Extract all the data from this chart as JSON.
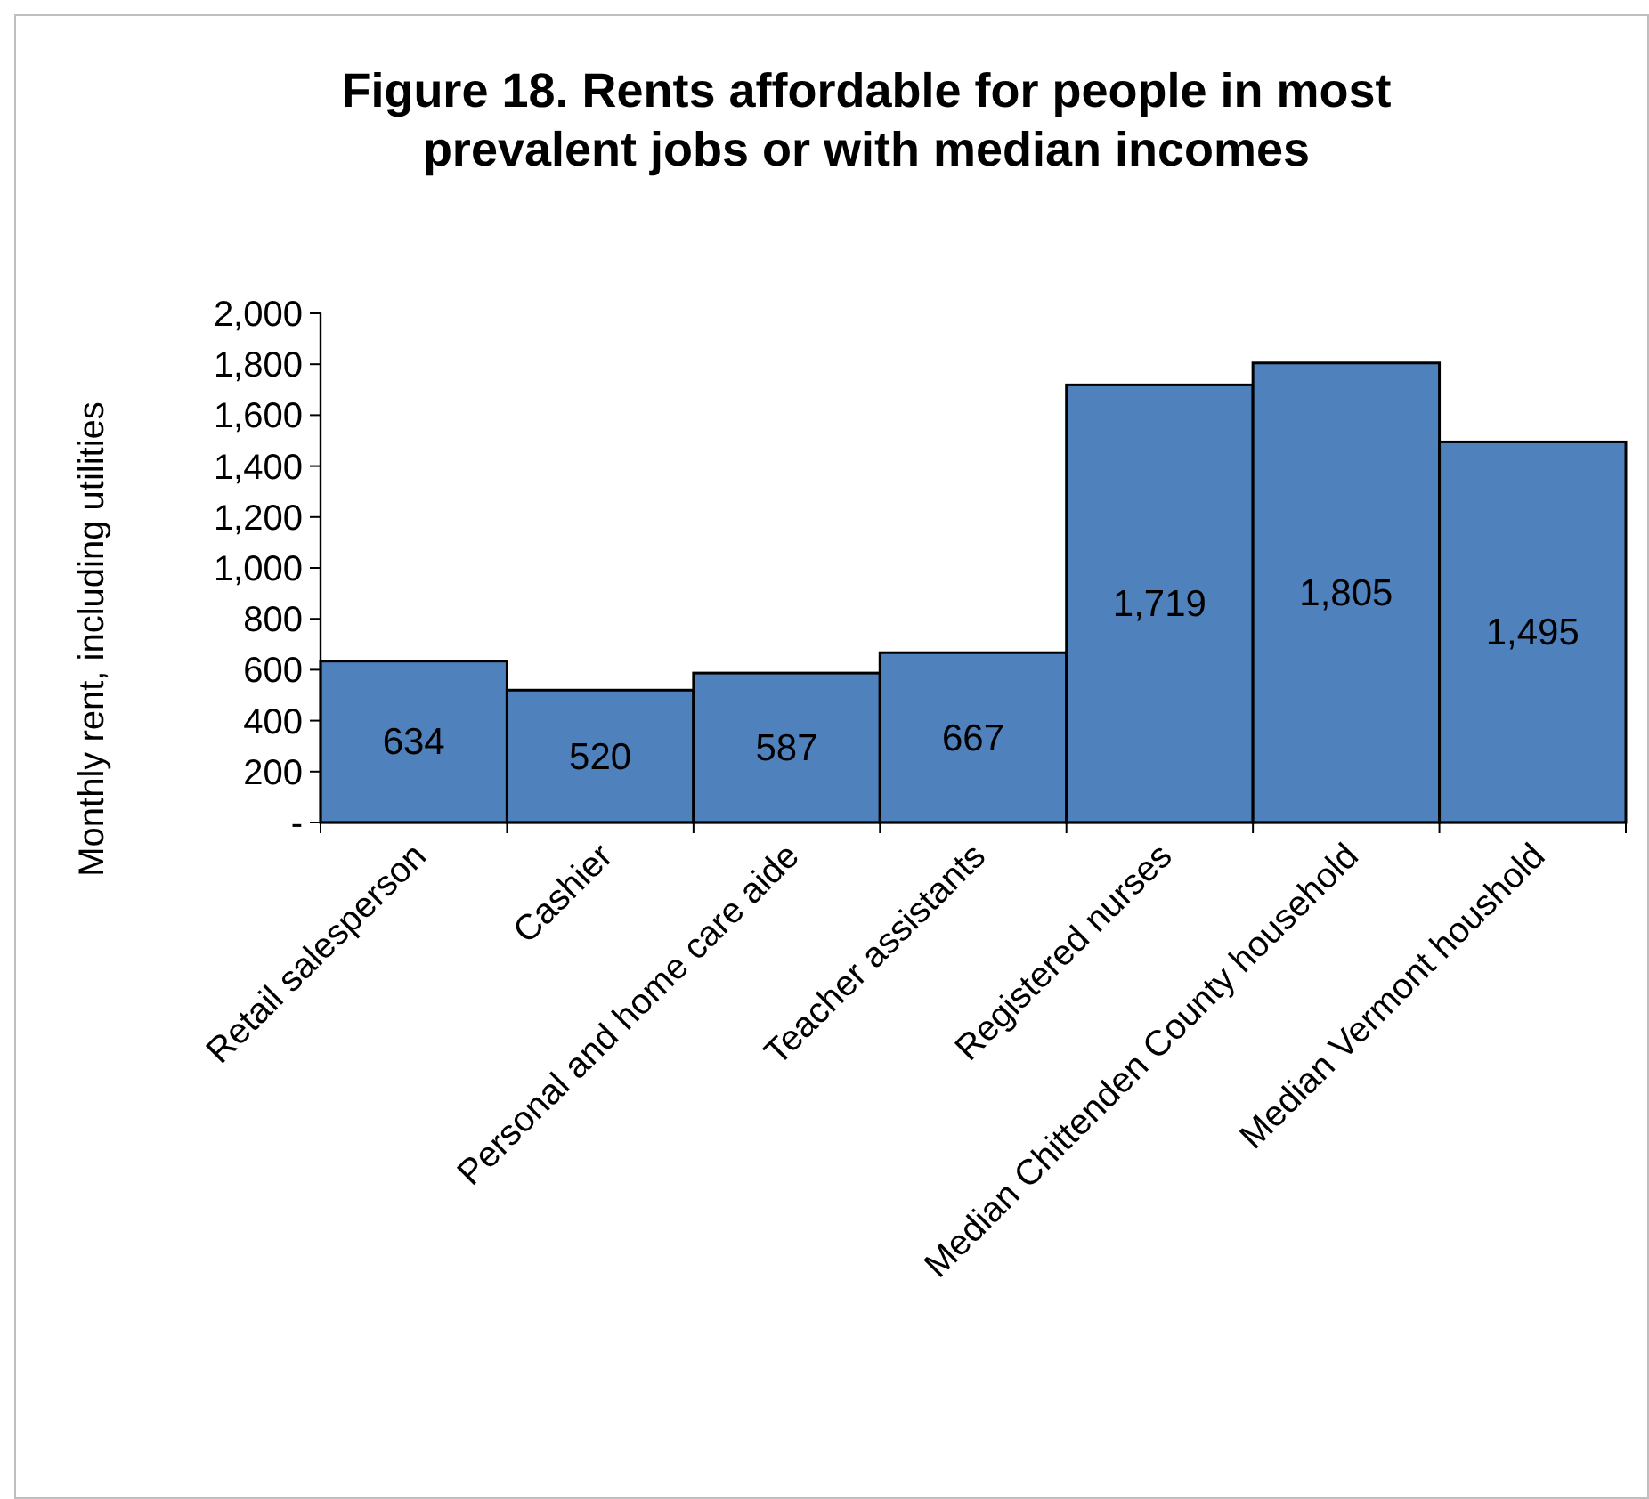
{
  "chart_data": {
    "type": "bar",
    "title": "Figure 18. Rents affordable for people in most prevalent jobs or with median incomes",
    "ylabel": "Monthly rent, including utilities",
    "categories": [
      "Retail salesperson",
      "Cashier",
      "Personal and home care aide",
      "Teacher assistants",
      "Registered nurses",
      "Median Chittenden County household",
      "Median Vermont houshold"
    ],
    "values": [
      634,
      520,
      587,
      667,
      1719,
      1805,
      1495
    ],
    "value_labels": [
      "634",
      "520",
      "587",
      "667",
      "1,719",
      "1,805",
      "1,495"
    ],
    "color": "#4f81bd",
    "ylim": [
      0,
      2000
    ],
    "yticks": [
      {
        "value": 0,
        "label": "-"
      },
      {
        "value": 200,
        "label": "200"
      },
      {
        "value": 400,
        "label": "400"
      },
      {
        "value": 600,
        "label": "600"
      },
      {
        "value": 800,
        "label": "800"
      },
      {
        "value": 1000,
        "label": "1,000"
      },
      {
        "value": 1200,
        "label": "1,200"
      },
      {
        "value": 1400,
        "label": "1,400"
      },
      {
        "value": 1600,
        "label": "1,600"
      },
      {
        "value": 1800,
        "label": "1,800"
      },
      {
        "value": 2000,
        "label": "2,000"
      }
    ],
    "grid": false
  }
}
